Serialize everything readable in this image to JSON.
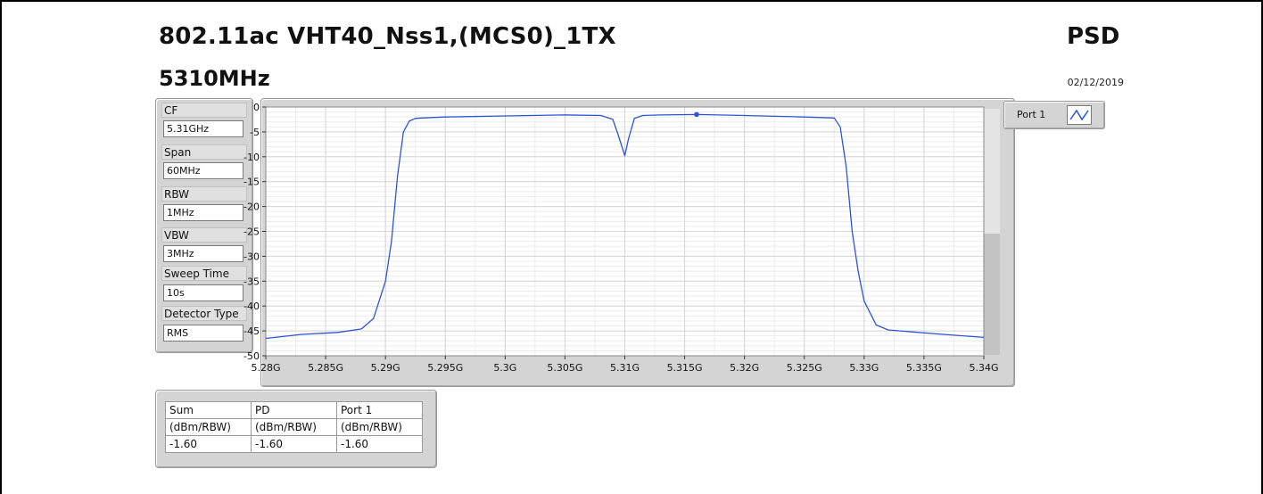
{
  "header": {
    "title": "802.11ac VHT40_Nss1,(MCS0)_1TX",
    "frequency": "5310MHz",
    "mode": "PSD",
    "date": "02/12/2019"
  },
  "settings": [
    {
      "label": "CF",
      "value": "5.31GHz"
    },
    {
      "label": "Span",
      "value": "60MHz"
    },
    {
      "label": "RBW",
      "value": "1MHz"
    },
    {
      "label": "VBW",
      "value": "3MHz"
    },
    {
      "label": "Sweep Time",
      "value": "10s"
    },
    {
      "label": "Detector Type",
      "value": "RMS"
    }
  ],
  "legend": {
    "label": "Port 1",
    "icon": "line-plot-icon"
  },
  "results": {
    "headers": [
      "Sum",
      "PD",
      "Port 1"
    ],
    "units": [
      "(dBm/RBW)",
      "(dBm/RBW)",
      "(dBm/RBW)"
    ],
    "values": [
      "-1.60",
      "-1.60",
      "-1.60"
    ]
  },
  "colors": {
    "trace": "#2b55d6",
    "grid": "#d6d6d6",
    "panel": "#d4d4d4"
  },
  "chart_data": {
    "type": "line",
    "xlabel": "",
    "ylabel": "",
    "xlim": [
      5280000000,
      5340000000
    ],
    "ylim": [
      -50,
      0
    ],
    "grid": true,
    "x_ticks": [
      5280000000,
      5285000000,
      5290000000,
      5295000000,
      5300000000,
      5305000000,
      5310000000,
      5315000000,
      5320000000,
      5325000000,
      5330000000,
      5335000000,
      5340000000
    ],
    "x_tick_labels": [
      "5.28G",
      "5.285G",
      "5.29G",
      "5.295G",
      "5.3G",
      "5.305G",
      "5.31G",
      "5.315G",
      "5.32G",
      "5.325G",
      "5.33G",
      "5.335G",
      "5.34G"
    ],
    "y_ticks": [
      0,
      -5,
      -10,
      -15,
      -20,
      -25,
      -30,
      -35,
      -40,
      -45,
      -50
    ],
    "y_tick_labels": [
      "0",
      "-5",
      "-10",
      "-15",
      "-20",
      "-25",
      "-30",
      "-35",
      "-40",
      "-45",
      "-50"
    ],
    "series": [
      {
        "x": [
          5280000000,
          5283000000,
          5286000000,
          5288000000,
          5289000000,
          5290000000,
          5290500000,
          5291000000,
          5291500000,
          5292000000,
          5292500000,
          5293000000,
          5295000000,
          5300000000,
          5305000000,
          5308000000,
          5309000000,
          5309500000,
          5310000000,
          5310300000,
          5310800000,
          5311500000,
          5313000000,
          5316000000,
          5320000000,
          5325000000,
          5327500000,
          5328000000,
          5328500000,
          5329000000,
          5329500000,
          5330000000,
          5331000000,
          5332000000,
          5336000000,
          5340000000
        ],
        "y": [
          -46.5,
          -45.7,
          -45.3,
          -44.6,
          -42.5,
          -35,
          -27,
          -14,
          -5,
          -2.8,
          -2.3,
          -2.2,
          -2.0,
          -1.8,
          -1.6,
          -1.7,
          -2.5,
          -6.0,
          -9.8,
          -6.5,
          -2.3,
          -1.7,
          -1.6,
          -1.5,
          -1.7,
          -2.0,
          -2.2,
          -4.0,
          -12,
          -25,
          -33,
          -39,
          -43.8,
          -44.8,
          -45.6,
          -46.3
        ]
      }
    ],
    "markers": [
      {
        "x": 5316000000,
        "y": -1.5
      }
    ]
  }
}
